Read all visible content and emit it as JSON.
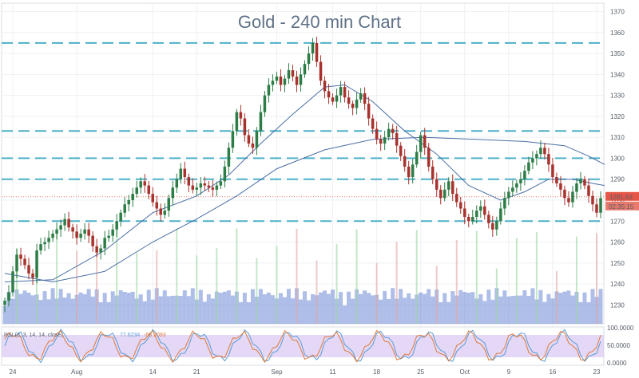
{
  "chart_data": {
    "type": "candlestick",
    "title": "Gold - 240 min Chart",
    "y_ticks": [
      1230,
      1240,
      1250,
      1260,
      1270,
      1280,
      1290,
      1300,
      1310,
      1320,
      1330,
      1340,
      1350,
      1360,
      1370
    ],
    "ylim": [
      1221,
      1374
    ],
    "x_ticks": [
      {
        "label": "24",
        "index": 2
      },
      {
        "label": "Aug",
        "index": 18
      },
      {
        "label": "14",
        "index": 37
      },
      {
        "label": "21",
        "index": 48
      },
      {
        "label": "Sep",
        "index": 68
      },
      {
        "label": "11",
        "index": 82
      },
      {
        "label": "18",
        "index": 93
      },
      {
        "label": "25",
        "index": 104
      },
      {
        "label": "Oct",
        "index": 115
      },
      {
        "label": "9",
        "index": 126
      },
      {
        "label": "16",
        "index": 137
      },
      {
        "label": "23",
        "index": 148
      }
    ],
    "horizontal_levels": [
      1355,
      1313,
      1300,
      1290,
      1270
    ],
    "current_price": {
      "label": "1281.63",
      "value": 1281.6,
      "countdown": "02:35:15"
    },
    "close_series": [
      1232,
      1236,
      1246,
      1254,
      1252,
      1249,
      1245,
      1243,
      1256,
      1259,
      1260,
      1262,
      1264,
      1266,
      1268,
      1271,
      1267,
      1265,
      1262,
      1264,
      1266,
      1263,
      1258,
      1255,
      1257,
      1262,
      1263,
      1266,
      1270,
      1274,
      1278,
      1280,
      1283,
      1286,
      1289,
      1287,
      1283,
      1279,
      1276,
      1273,
      1275,
      1281,
      1286,
      1290,
      1295,
      1291,
      1287,
      1285,
      1286,
      1288,
      1287,
      1286,
      1285,
      1287,
      1289,
      1296,
      1305,
      1313,
      1322,
      1319,
      1311,
      1307,
      1305,
      1313,
      1322,
      1330,
      1335,
      1337,
      1339,
      1335,
      1338,
      1342,
      1339,
      1335,
      1340,
      1345,
      1350,
      1355,
      1346,
      1337,
      1332,
      1329,
      1327,
      1330,
      1334,
      1329,
      1326,
      1324,
      1328,
      1331,
      1326,
      1319,
      1314,
      1309,
      1307,
      1310,
      1314,
      1312,
      1306,
      1301,
      1296,
      1291,
      1297,
      1303,
      1311,
      1305,
      1296,
      1290,
      1285,
      1281,
      1285,
      1289,
      1283,
      1279,
      1276,
      1272,
      1270,
      1272,
      1275,
      1277,
      1273,
      1269,
      1266,
      1270,
      1276,
      1281,
      1284,
      1286,
      1288,
      1290,
      1294,
      1298,
      1300,
      1302,
      1305,
      1302,
      1297,
      1291,
      1288,
      1285,
      1281,
      1279,
      1284,
      1288,
      1290,
      1287,
      1282,
      1278,
      1274,
      1281
    ],
    "ma_fast": [
      [
        0,
        1241
      ],
      [
        12,
        1242
      ],
      [
        25,
        1256
      ],
      [
        37,
        1274
      ],
      [
        48,
        1282
      ],
      [
        56,
        1292
      ],
      [
        64,
        1307
      ],
      [
        72,
        1321
      ],
      [
        80,
        1334
      ],
      [
        85,
        1335
      ],
      [
        92,
        1327
      ],
      [
        100,
        1313
      ],
      [
        108,
        1302
      ],
      [
        116,
        1287
      ],
      [
        124,
        1280
      ],
      [
        130,
        1284
      ],
      [
        136,
        1290
      ],
      [
        142,
        1290
      ],
      [
        147,
        1288
      ],
      [
        150,
        1287
      ]
    ],
    "ma_slow": [
      [
        0,
        1245
      ],
      [
        12,
        1241
      ],
      [
        25,
        1246
      ],
      [
        37,
        1260
      ],
      [
        48,
        1271
      ],
      [
        58,
        1282
      ],
      [
        68,
        1295
      ],
      [
        80,
        1304
      ],
      [
        92,
        1309
      ],
      [
        105,
        1310
      ],
      [
        118,
        1309
      ],
      [
        130,
        1308
      ],
      [
        140,
        1306
      ],
      [
        146,
        1301
      ],
      [
        150,
        1297
      ]
    ],
    "rsi_label": "RSI (3, 3, 14, 14, close)",
    "rsi_k_label": "77.6234",
    "rsi_d_label": "-66.9093",
    "osc_ticks": [
      "100.0000",
      "50.0000",
      "0.0000"
    ],
    "colors": {
      "up": "#2d7d46",
      "down": "#a8322d",
      "ma": "#4a6fa5",
      "level": "#4fb1c9",
      "price_tag": "#e65646",
      "osc_k": "#5b9bd5",
      "osc_d": "#e07a3a",
      "volume": "#6b89d6"
    }
  }
}
